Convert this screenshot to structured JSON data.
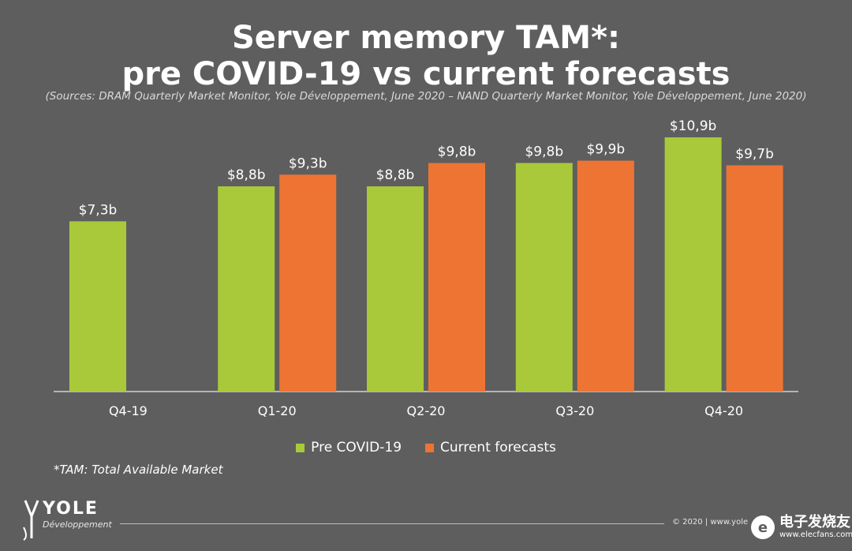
{
  "title_line1": "Server memory TAM*:",
  "title_line2": "pre COVID-19 vs current forecasts",
  "subtitle": "(Sources: DRAM Quarterly Market Monitor, Yole Développement, June 2020 – NAND Quarterly Market Monitor, Yole Développement, June 2020)",
  "footnote": "*TAM: Total Available Market",
  "logo": {
    "name": "YOLE",
    "sub": "Développement"
  },
  "copyright": "© 2020 | www.yole",
  "watermark": {
    "cn": "电子发烧友",
    "url": "www.elecfans.com"
  },
  "colors": {
    "background": "#5e5e5e",
    "pre": "#a9c93a",
    "current": "#ee7433"
  },
  "chart_data": {
    "type": "bar",
    "categories": [
      "Q4-19",
      "Q1-20",
      "Q2-20",
      "Q3-20",
      "Q4-20"
    ],
    "series": [
      {
        "name": "Pre COVID-19",
        "values": [
          7.3,
          8.8,
          8.8,
          9.8,
          10.9
        ],
        "labels": [
          "$7,3b",
          "$8,8b",
          "$8,8b",
          "$9,8b",
          "$10,9b"
        ],
        "color": "#a9c93a"
      },
      {
        "name": "Current forecasts",
        "values": [
          null,
          9.3,
          9.8,
          9.9,
          9.7
        ],
        "labels": [
          null,
          "$9,3b",
          "$9,8b",
          "$9,9b",
          "$9,7b"
        ],
        "color": "#ee7433"
      }
    ],
    "legend_position": "bottom",
    "grid": false
  }
}
